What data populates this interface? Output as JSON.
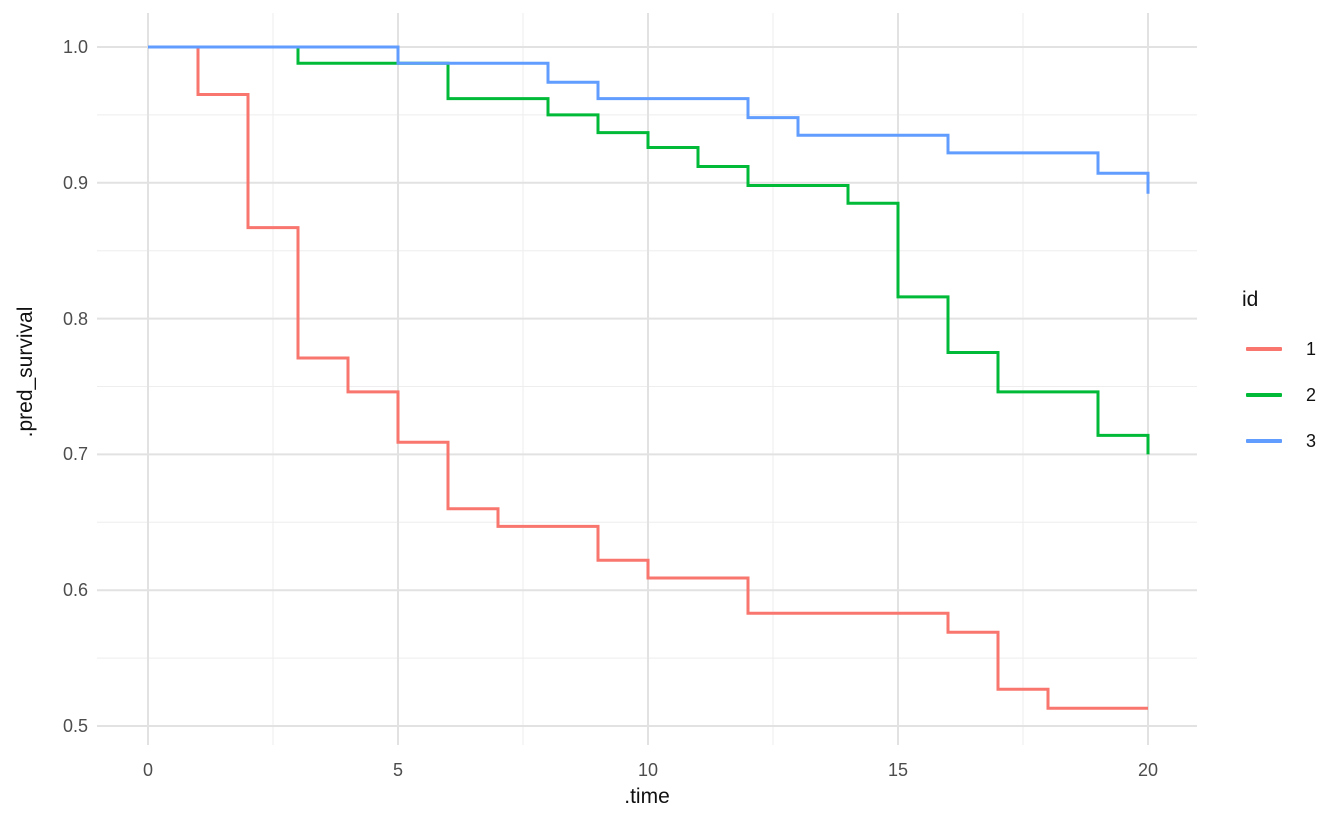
{
  "chart_data": {
    "type": "line",
    "subtype": "step-survival-curves",
    "title": "",
    "xlabel": ".time",
    "ylabel": ".pred_survival",
    "xlim": [
      0,
      20
    ],
    "ylim": [
      0.5,
      1.0
    ],
    "x_ticks": [
      0,
      5,
      10,
      15,
      20
    ],
    "x_tick_labels": [
      "0",
      "5",
      "10",
      "15",
      "20"
    ],
    "x_minor_ticks": [
      2.5,
      7.5,
      12.5,
      17.5
    ],
    "y_ticks": [
      1.0,
      0.9,
      0.8,
      0.7,
      0.6,
      0.5
    ],
    "y_tick_labels": [
      "1.0",
      "0.9",
      "0.8",
      "0.7",
      "0.6",
      "0.5"
    ],
    "y_minor_ticks": [
      0.95,
      0.85,
      0.75,
      0.65,
      0.55
    ],
    "grid": true,
    "legend": {
      "title": "id",
      "position": "right"
    },
    "step_mode": "hv",
    "colors": {
      "background": "#ffffff",
      "grid_major": "#e2e2e2",
      "grid_minor": "#eeeeee",
      "tick_label": "#4d4d4d",
      "axis_title": "#111111"
    },
    "series": [
      {
        "name": "1",
        "color": "#F8766D",
        "steps": [
          [
            0,
            1.0
          ],
          [
            1,
            0.965
          ],
          [
            2,
            0.867
          ],
          [
            3,
            0.771
          ],
          [
            4,
            0.746
          ],
          [
            5,
            0.709
          ],
          [
            6,
            0.66
          ],
          [
            7,
            0.647
          ],
          [
            9,
            0.622
          ],
          [
            10,
            0.609
          ],
          [
            12,
            0.583
          ],
          [
            16,
            0.569
          ],
          [
            17,
            0.527
          ],
          [
            18,
            0.513
          ],
          [
            20,
            0.513
          ]
        ]
      },
      {
        "name": "2",
        "color": "#00BA38",
        "steps": [
          [
            0,
            1.0
          ],
          [
            3,
            0.988
          ],
          [
            6,
            0.962
          ],
          [
            8,
            0.95
          ],
          [
            9,
            0.937
          ],
          [
            10,
            0.926
          ],
          [
            11,
            0.912
          ],
          [
            12,
            0.898
          ],
          [
            14,
            0.885
          ],
          [
            15,
            0.816
          ],
          [
            16,
            0.775
          ],
          [
            17,
            0.746
          ],
          [
            19,
            0.714
          ],
          [
            20,
            0.7
          ]
        ]
      },
      {
        "name": "3",
        "color": "#619CFF",
        "steps": [
          [
            0,
            1.0
          ],
          [
            5,
            0.988
          ],
          [
            8,
            0.974
          ],
          [
            9,
            0.962
          ],
          [
            12,
            0.948
          ],
          [
            13,
            0.935
          ],
          [
            16,
            0.922
          ],
          [
            19,
            0.907
          ],
          [
            20,
            0.892
          ]
        ]
      }
    ]
  }
}
